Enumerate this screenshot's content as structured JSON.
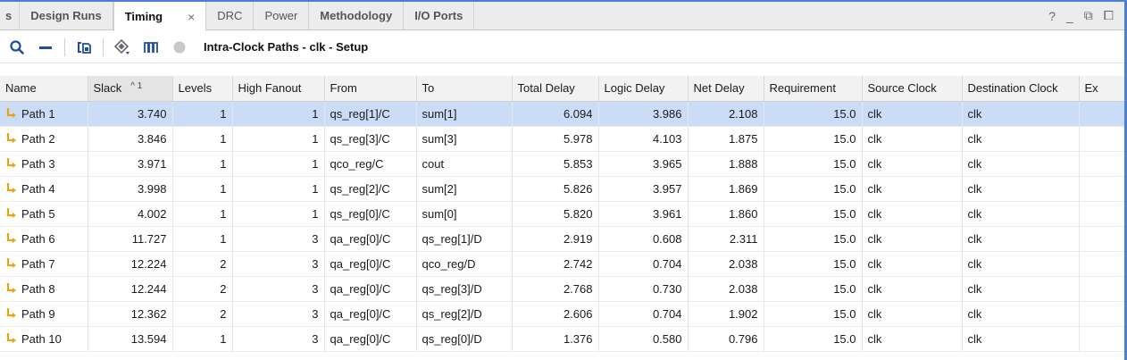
{
  "tabs": [
    {
      "label": "s"
    },
    {
      "label": "Design Runs"
    },
    {
      "label": "Timing",
      "active": true
    },
    {
      "label": "DRC"
    },
    {
      "label": "Power"
    },
    {
      "label": "Methodology"
    },
    {
      "label": "I/O Ports"
    }
  ],
  "tab_close": "×",
  "window_controls": {
    "help": "?",
    "minimize": "_",
    "restore": "⧉",
    "float": "⧠"
  },
  "toolbar": {
    "title": "Intra-Clock Paths - clk - Setup",
    "icons": [
      "search-icon",
      "collapse-icon",
      "export-icon",
      "highlight-icon",
      "schematic-icon",
      "status-icon"
    ]
  },
  "colors": {
    "accent_border": "#4a7fd6",
    "selected_row": "#cbdcf7",
    "path_icon": "#e8a318"
  },
  "table": {
    "columns": [
      "Name",
      "Slack",
      "Levels",
      "High Fanout",
      "From",
      "To",
      "Total Delay",
      "Logic Delay",
      "Net Delay",
      "Requirement",
      "Source Clock",
      "Destination Clock",
      "Ex"
    ],
    "sort_indicator": "^ 1",
    "rows": [
      [
        "Path 1",
        "3.740",
        "1",
        "1",
        "qs_reg[1]/C",
        "sum[1]",
        "6.094",
        "3.986",
        "2.108",
        "15.0",
        "clk",
        "clk"
      ],
      [
        "Path 2",
        "3.846",
        "1",
        "1",
        "qs_reg[3]/C",
        "sum[3]",
        "5.978",
        "4.103",
        "1.875",
        "15.0",
        "clk",
        "clk"
      ],
      [
        "Path 3",
        "3.971",
        "1",
        "1",
        "qco_reg/C",
        "cout",
        "5.853",
        "3.965",
        "1.888",
        "15.0",
        "clk",
        "clk"
      ],
      [
        "Path 4",
        "3.998",
        "1",
        "1",
        "qs_reg[2]/C",
        "sum[2]",
        "5.826",
        "3.957",
        "1.869",
        "15.0",
        "clk",
        "clk"
      ],
      [
        "Path 5",
        "4.002",
        "1",
        "1",
        "qs_reg[0]/C",
        "sum[0]",
        "5.820",
        "3.961",
        "1.860",
        "15.0",
        "clk",
        "clk"
      ],
      [
        "Path 6",
        "11.727",
        "1",
        "3",
        "qa_reg[0]/C",
        "qs_reg[1]/D",
        "2.919",
        "0.608",
        "2.311",
        "15.0",
        "clk",
        "clk"
      ],
      [
        "Path 7",
        "12.224",
        "2",
        "3",
        "qa_reg[0]/C",
        "qco_reg/D",
        "2.742",
        "0.704",
        "2.038",
        "15.0",
        "clk",
        "clk"
      ],
      [
        "Path 8",
        "12.244",
        "2",
        "3",
        "qa_reg[0]/C",
        "qs_reg[3]/D",
        "2.768",
        "0.730",
        "2.038",
        "15.0",
        "clk",
        "clk"
      ],
      [
        "Path 9",
        "12.362",
        "2",
        "3",
        "qa_reg[0]/C",
        "qs_reg[2]/D",
        "2.606",
        "0.704",
        "1.902",
        "15.0",
        "clk",
        "clk"
      ],
      [
        "Path 10",
        "13.594",
        "1",
        "3",
        "qa_reg[0]/C",
        "qs_reg[0]/D",
        "1.376",
        "0.580",
        "0.796",
        "15.0",
        "clk",
        "clk"
      ]
    ],
    "selected_row": 0
  }
}
